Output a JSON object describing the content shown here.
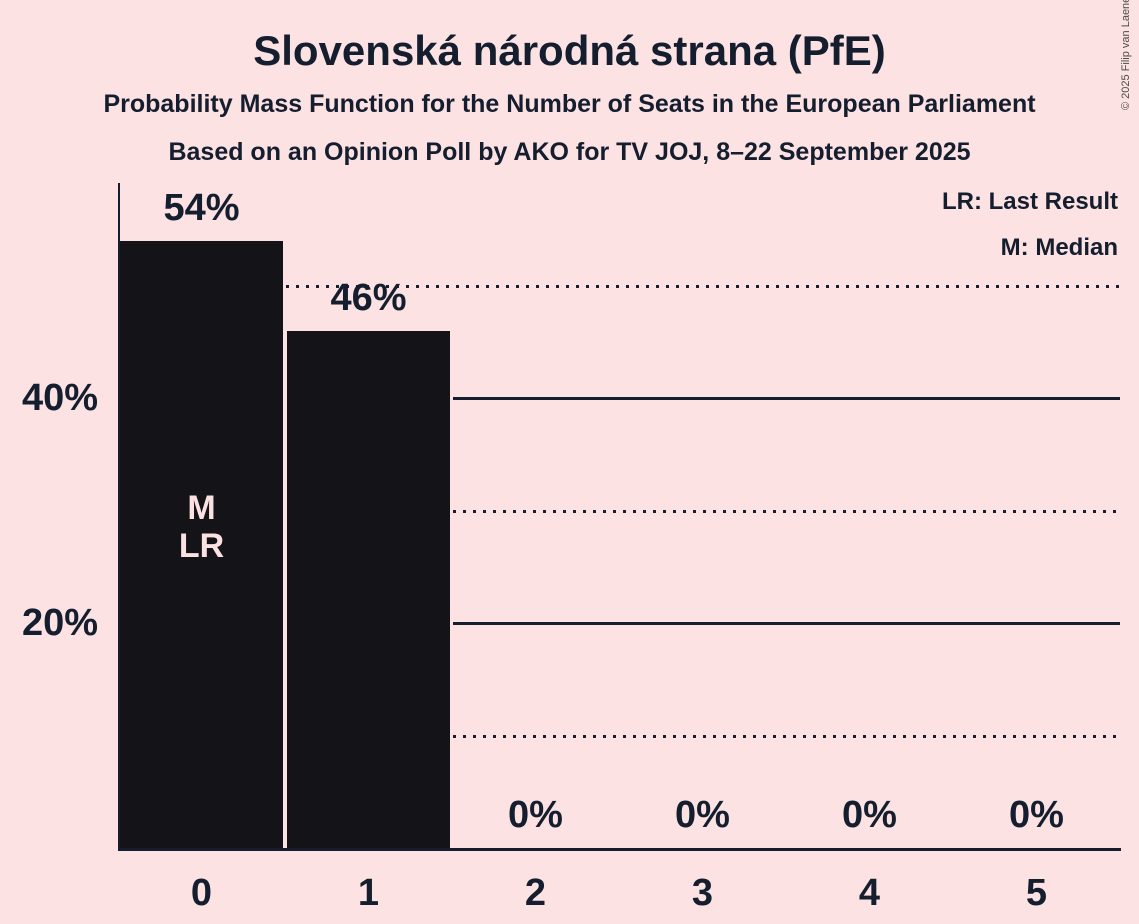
{
  "page": {
    "background_color": "#fce2e2",
    "ink_color": "#141e2e",
    "bar_color": "#131318",
    "bar_annotation_color": "#fbe1e2",
    "copyright_color": "#4d4d4d"
  },
  "header": {
    "title": "Slovenská národná strana (PfE)",
    "subtitle1": "Probability Mass Function for the Number of Seats in the European Parliament",
    "subtitle2": "Based on an Opinion Poll by AKO for TV JOJ, 8–22 September 2025"
  },
  "legend": {
    "line1": "LR: Last Result",
    "line2": "M: Median"
  },
  "copyright": "© 2025 Filip van Laenen",
  "chart_data": {
    "type": "bar",
    "title": "Slovenská národná strana (PfE)",
    "subtitle": "Probability Mass Function for the Number of Seats in the European Parliament",
    "source_note": "Based on an Opinion Poll by AKO for TV JOJ, 8–22 September 2025",
    "xlabel": "",
    "ylabel": "",
    "categories": [
      "0",
      "1",
      "2",
      "3",
      "4",
      "5"
    ],
    "values": [
      54,
      46,
      0,
      0,
      0,
      0
    ],
    "bar_labels": [
      "54%",
      "46%",
      "0%",
      "0%",
      "0%",
      "0%"
    ],
    "ylim": [
      0,
      59
    ],
    "y_axis_ticks": [
      {
        "value": 20,
        "label": "20%",
        "style": "solid"
      },
      {
        "value": 40,
        "label": "40%",
        "style": "solid"
      }
    ],
    "y_dotted_gridlines": [
      10,
      30,
      50
    ],
    "bar_annotations": [
      {
        "bar_index": 0,
        "lines": [
          "M",
          "LR"
        ]
      }
    ],
    "legend_entries": [
      "LR: Last Result",
      "M: Median"
    ],
    "legend_position": "top-right",
    "grid": "horizontal, drawn only to the right of the tallest bar exceeding each level"
  }
}
